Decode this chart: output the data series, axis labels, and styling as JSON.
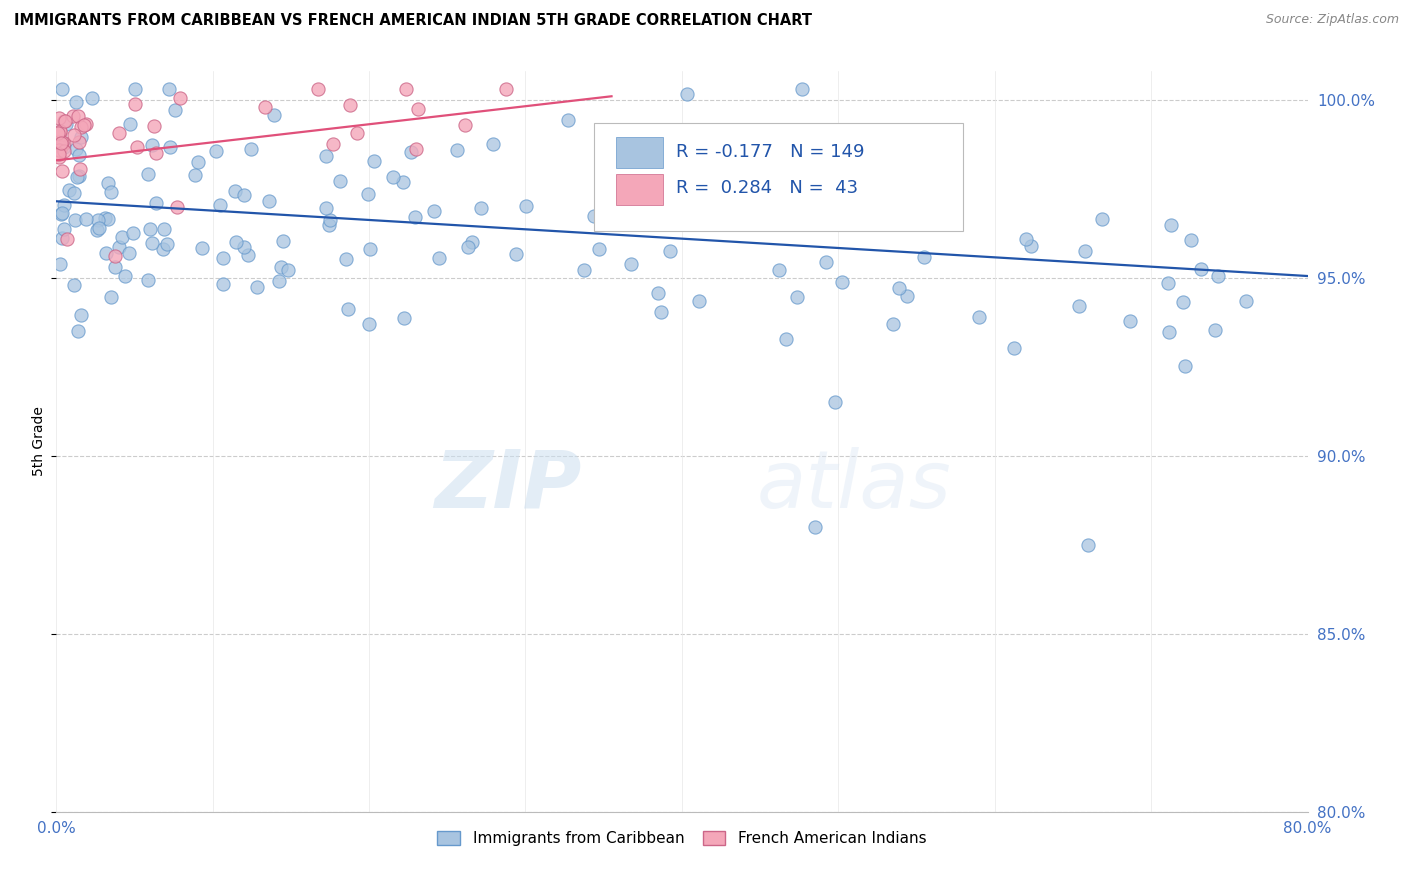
{
  "title": "IMMIGRANTS FROM CARIBBEAN VS FRENCH AMERICAN INDIAN 5TH GRADE CORRELATION CHART",
  "source": "Source: ZipAtlas.com",
  "ylabel": "5th Grade",
  "x_min": 0.0,
  "x_max": 0.8,
  "y_min": 0.8,
  "y_max": 1.008,
  "x_ticks": [
    0.0,
    0.1,
    0.2,
    0.3,
    0.4,
    0.5,
    0.6,
    0.7,
    0.8
  ],
  "x_ticklabels": [
    "0.0%",
    "",
    "",
    "",
    "",
    "",
    "",
    "",
    "80.0%"
  ],
  "y_ticks": [
    0.8,
    0.85,
    0.9,
    0.95,
    1.0
  ],
  "y_ticklabels": [
    "80.0%",
    "85.0%",
    "90.0%",
    "95.0%",
    "100.0%"
  ],
  "right_axis_color": "#4472c4",
  "blue_R": -0.177,
  "blue_N": 149,
  "pink_R": 0.284,
  "pink_N": 43,
  "blue_color": "#a8c4e0",
  "pink_color": "#f4a7b9",
  "blue_line_color": "#2255aa",
  "pink_line_color": "#e0507a",
  "blue_edge_color": "#6699cc",
  "pink_edge_color": "#cc6688",
  "legend_label_blue": "Immigrants from Caribbean",
  "legend_label_pink": "French American Indians",
  "watermark_zip": "ZIP",
  "watermark_atlas": "atlas",
  "blue_trendline": [
    0.0,
    0.8,
    0.9715,
    0.9505
  ],
  "pink_trendline": [
    0.0,
    0.355,
    0.983,
    1.001
  ]
}
